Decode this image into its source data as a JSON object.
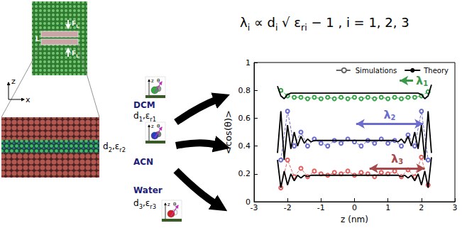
{
  "chart_data": {
    "type": "line",
    "xlabel": "z (nm)",
    "ylabel": "<cos(θ)>",
    "xlim": [
      -3,
      3
    ],
    "xticks": [
      -3,
      -2,
      -1,
      0,
      1,
      2,
      3
    ],
    "ylim": [
      0,
      1
    ],
    "yticks": [
      0,
      0.2,
      0.4,
      0.6,
      0.8,
      1
    ],
    "legend": "upper right",
    "series": [
      {
        "name": "Simulations",
        "color": "#3aa54a",
        "marker": "open circle",
        "line_style": "dashed",
        "x": [
          -2.2,
          -2.0,
          -1.8,
          -1.6,
          -1.4,
          -1.2,
          -1.0,
          -0.8,
          -0.6,
          -0.4,
          -0.2,
          0,
          0.2,
          0.4,
          0.6,
          0.8,
          1.0,
          1.2,
          1.4,
          1.6,
          1.8,
          2.0,
          2.2
        ],
        "values": [
          0.8,
          0.76,
          0.75,
          0.75,
          0.74,
          0.75,
          0.74,
          0.75,
          0.74,
          0.75,
          0.74,
          0.75,
          0.74,
          0.75,
          0.74,
          0.75,
          0.74,
          0.75,
          0.74,
          0.75,
          0.75,
          0.76,
          0.79
        ]
      },
      {
        "name": "Simulations",
        "color": "#6b6bd0",
        "marker": "open circle",
        "line_style": "dashed",
        "x": [
          -2.2,
          -2.0,
          -1.8,
          -1.6,
          -1.4,
          -1.2,
          -1.0,
          -0.8,
          -0.6,
          -0.4,
          -0.2,
          0,
          0.2,
          0.4,
          0.6,
          0.8,
          1.0,
          1.2,
          1.4,
          1.6,
          1.8,
          2.0,
          2.2
        ],
        "values": [
          0.3,
          0.65,
          0.4,
          0.5,
          0.4,
          0.45,
          0.42,
          0.4,
          0.44,
          0.42,
          0.45,
          0.43,
          0.4,
          0.44,
          0.42,
          0.45,
          0.42,
          0.44,
          0.4,
          0.48,
          0.4,
          0.65,
          0.3
        ]
      },
      {
        "name": "Simulations",
        "color": "#e06060",
        "marker": "open circle",
        "line_style": "dashed",
        "x": [
          -2.2,
          -2.0,
          -1.8,
          -1.6,
          -1.4,
          -1.2,
          -1.0,
          -0.8,
          -0.6,
          -0.4,
          -0.2,
          0,
          0.2,
          0.4,
          0.6,
          0.8,
          1.0,
          1.2,
          1.4,
          1.6,
          1.8,
          2.0,
          2.2
        ],
        "values": [
          0.1,
          0.3,
          0.18,
          0.24,
          0.18,
          0.22,
          0.2,
          0.19,
          0.21,
          0.2,
          0.22,
          0.19,
          0.21,
          0.2,
          0.18,
          0.21,
          0.2,
          0.22,
          0.18,
          0.23,
          0.18,
          0.32,
          0.12
        ]
      },
      {
        "name": "Theory",
        "color": "#000000",
        "marker": "none",
        "line_style": "solid",
        "x": [
          -2.3,
          -2.2,
          -2.1,
          -2.0,
          -1.9,
          -1.8,
          -1.7,
          -1.6,
          -1.5,
          -1.4,
          -1.3,
          -1.2,
          -1.1,
          -1.0,
          -0.9,
          -0.8,
          -0.7,
          -0.6,
          -0.5,
          -0.4,
          -0.3,
          -0.2,
          -0.1,
          0,
          0.1,
          0.2,
          0.3,
          0.4,
          0.5,
          0.6,
          0.7,
          0.8,
          0.9,
          1.0,
          1.1,
          1.2,
          1.3,
          1.4,
          1.5,
          1.6,
          1.7,
          1.8,
          1.9,
          2.0,
          2.1,
          2.2,
          2.3
        ],
        "values": [
          0.83,
          0.76,
          0.74,
          0.77,
          0.78,
          0.78,
          0.78,
          0.78,
          0.78,
          0.78,
          0.78,
          0.78,
          0.78,
          0.78,
          0.78,
          0.78,
          0.78,
          0.78,
          0.78,
          0.78,
          0.78,
          0.78,
          0.78,
          0.78,
          0.78,
          0.78,
          0.78,
          0.78,
          0.78,
          0.78,
          0.78,
          0.78,
          0.78,
          0.78,
          0.78,
          0.78,
          0.78,
          0.78,
          0.78,
          0.78,
          0.78,
          0.78,
          0.78,
          0.77,
          0.74,
          0.76,
          0.84
        ]
      },
      {
        "name": "Theory",
        "color": "#000000",
        "marker": "none",
        "line_style": "solid",
        "x": [
          -2.3,
          -2.2,
          -2.1,
          -2.0,
          -1.9,
          -1.8,
          -1.7,
          -1.6,
          -1.5,
          -1.4,
          -1.3,
          -1.2,
          -1.1,
          -1.0,
          -0.9,
          -0.8,
          -0.7,
          -0.6,
          -0.5,
          -0.4,
          -0.3,
          -0.2,
          -0.1,
          0,
          0.1,
          0.2,
          0.3,
          0.4,
          0.5,
          0.6,
          0.7,
          0.8,
          0.9,
          1.0,
          1.1,
          1.2,
          1.3,
          1.4,
          1.5,
          1.6,
          1.7,
          1.8,
          1.9,
          2.0,
          2.1,
          2.2,
          2.3
        ],
        "values": [
          0.35,
          0.65,
          0.3,
          0.55,
          0.38,
          0.5,
          0.4,
          0.47,
          0.42,
          0.45,
          0.43,
          0.44,
          0.44,
          0.44,
          0.44,
          0.44,
          0.44,
          0.44,
          0.44,
          0.44,
          0.44,
          0.44,
          0.44,
          0.44,
          0.44,
          0.44,
          0.44,
          0.44,
          0.44,
          0.44,
          0.44,
          0.44,
          0.44,
          0.44,
          0.44,
          0.44,
          0.43,
          0.45,
          0.42,
          0.47,
          0.4,
          0.5,
          0.38,
          0.55,
          0.3,
          0.65,
          0.35
        ]
      },
      {
        "name": "Theory",
        "color": "#000000",
        "marker": "none",
        "line_style": "solid",
        "x": [
          -2.3,
          -2.2,
          -2.1,
          -2.0,
          -1.9,
          -1.8,
          -1.7,
          -1.6,
          -1.5,
          -1.4,
          -1.3,
          -1.2,
          -1.1,
          -1.0,
          -0.9,
          -0.8,
          -0.7,
          -0.6,
          -0.5,
          -0.4,
          -0.3,
          -0.2,
          -0.1,
          0,
          0.1,
          0.2,
          0.3,
          0.4,
          0.5,
          0.6,
          0.7,
          0.8,
          0.9,
          1.0,
          1.1,
          1.2,
          1.3,
          1.4,
          1.5,
          1.6,
          1.7,
          1.8,
          1.9,
          2.0,
          2.1,
          2.2,
          2.3
        ],
        "values": [
          0.3,
          0.1,
          0.22,
          0.12,
          0.2,
          0.15,
          0.19,
          0.17,
          0.19,
          0.18,
          0.19,
          0.19,
          0.19,
          0.19,
          0.19,
          0.19,
          0.19,
          0.19,
          0.19,
          0.19,
          0.19,
          0.19,
          0.19,
          0.19,
          0.19,
          0.19,
          0.19,
          0.19,
          0.19,
          0.19,
          0.19,
          0.19,
          0.19,
          0.19,
          0.19,
          0.19,
          0.19,
          0.18,
          0.19,
          0.17,
          0.19,
          0.15,
          0.2,
          0.12,
          0.22,
          0.1,
          0.32
        ]
      }
    ],
    "annotations": [
      {
        "text": [
          {
            "text": "λ"
          },
          {
            "text": "1",
            "sub": true
          }
        ],
        "color": "#3a9a4a",
        "y": 0.87,
        "x": [
          1.75,
          1.35
        ],
        "arrow": "single"
      },
      {
        "text": [
          {
            "text": "λ"
          },
          {
            "text": "2",
            "sub": true
          }
        ],
        "color": "#6b6bd0",
        "y": 0.56,
        "x": [
          0.05,
          2.05
        ],
        "arrow": "double"
      },
      {
        "text": [
          {
            "text": "λ"
          },
          {
            "text": "3",
            "sub": true
          }
        ],
        "color": "#a84848",
        "y": 0.24,
        "x": [
          0.45,
          2.1
        ],
        "arrow": "double"
      }
    ]
  },
  "equation": [
    {
      "text": "λ"
    },
    {
      "text": "i",
      "sub": true
    },
    {
      "text": " ∝ d"
    },
    {
      "text": "i",
      "sub": true
    },
    {
      "text": " √ ε"
    },
    {
      "text": "ri",
      "sub": true
    },
    {
      "text": " − 1 , i = 1, 2, 3"
    }
  ],
  "diagram": {
    "axes": {
      "z": "z",
      "x": "x"
    },
    "box": {
      "length": "L",
      "force": [
        {
          "text": "F"
        },
        {
          "text": "L",
          "sub": true
        }
      ]
    },
    "icon_labels": {
      "axis": "z",
      "angle": "θ"
    },
    "solvents": [
      {
        "name": "DCM",
        "props": [
          {
            "text": "d"
          },
          {
            "text": "1",
            "sub": true
          },
          {
            "text": ",ε"
          },
          {
            "text": "r1",
            "sub": true
          }
        ]
      },
      {
        "name": "ACN",
        "props": [
          {
            "text": "d"
          },
          {
            "text": "2",
            "sub": true
          },
          {
            "text": ",ε"
          },
          {
            "text": "r2",
            "sub": true
          }
        ]
      },
      {
        "name": "Water",
        "props": [
          {
            "text": "d"
          },
          {
            "text": "3",
            "sub": true
          },
          {
            "text": ",ε"
          },
          {
            "text": "r3",
            "sub": true
          }
        ]
      }
    ]
  }
}
